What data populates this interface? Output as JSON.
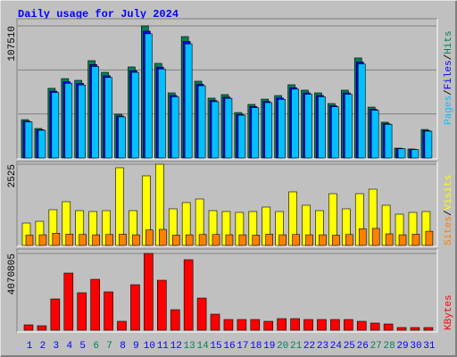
{
  "legend_separator": "/",
  "weekend_indices": [
    5,
    6,
    12,
    13,
    19,
    20,
    26,
    27
  ],
  "weekday_color": "#0000ff",
  "weekend_color": "#00805c",
  "chart_data": [
    {
      "type": "bar",
      "title": "Daily usage for July 2024",
      "ylim": [
        0,
        107510
      ],
      "yticks": [
        107510
      ],
      "series": [
        {
          "name": "Hits",
          "color": "#00805c",
          "values": [
            31200,
            24000,
            56700,
            64600,
            63200,
            79200,
            69700,
            35600,
            74100,
            107510,
            77000,
            53000,
            98800,
            62500,
            48700,
            51600,
            37000,
            43600,
            47900,
            50800,
            59600,
            55200,
            53000,
            44300,
            55200,
            81400,
            41400,
            29100,
            8000,
            7300,
            23200
          ]
        },
        {
          "name": "Files",
          "color": "#0000ff",
          "values": [
            29950,
            23040,
            54430,
            62020,
            60670,
            76030,
            66910,
            34180,
            71140,
            103210,
            73920,
            50880,
            94850,
            60000,
            46750,
            49540,
            35520,
            41860,
            45980,
            48770,
            57220,
            52990,
            50880,
            42530,
            52990,
            78140,
            39740,
            27940,
            7680,
            7010,
            22270
          ]
        },
        {
          "name": "Pages",
          "color": "#00c0ff",
          "values": [
            29330,
            22560,
            53300,
            60720,
            59410,
            74450,
            65520,
            33460,
            69650,
            101060,
            72380,
            49820,
            92870,
            58750,
            45780,
            48500,
            34780,
            40980,
            45030,
            47750,
            56020,
            51890,
            49820,
            41640,
            51890,
            76520,
            38920,
            27350,
            7520,
            6860,
            21810
          ]
        }
      ]
    },
    {
      "type": "bar",
      "ylim": [
        0,
        2525
      ],
      "yticks": [
        2525
      ],
      "series": [
        {
          "name": "Visits",
          "color": "#ffff00",
          "values": [
            694,
            749,
            1110,
            1360,
            1082,
            1054,
            1082,
            2414,
            1082,
            2164,
            2525,
            1138,
            1332,
            1443,
            1082,
            1054,
            1027,
            1054,
            1193,
            1054,
            1665,
            1249,
            1082,
            1609,
            1138,
            1609,
            1748,
            1249,
            971,
            1027,
            1054
          ]
        },
        {
          "name": "Sites",
          "color": "#ff8000",
          "values": [
            320,
            330,
            380,
            350,
            340,
            330,
            340,
            350,
            330,
            480,
            500,
            320,
            330,
            340,
            340,
            330,
            330,
            320,
            350,
            330,
            340,
            330,
            330,
            320,
            340,
            520,
            530,
            360,
            330,
            350,
            440
          ]
        }
      ]
    },
    {
      "type": "bar",
      "ylim": [
        0,
        4070805
      ],
      "yticks": [
        4070805
      ],
      "categories": [
        "1",
        "2",
        "3",
        "4",
        "5",
        "6",
        "7",
        "8",
        "9",
        "10",
        "11",
        "12",
        "13",
        "14",
        "15",
        "16",
        "17",
        "18",
        "19",
        "20",
        "21",
        "22",
        "23",
        "24",
        "25",
        "26",
        "27",
        "28",
        "29",
        "30",
        "31"
      ],
      "series": [
        {
          "name": "KBytes",
          "color": "#ff0000",
          "values": [
            284000,
            237000,
            1657000,
            3030000,
            1988000,
            2698000,
            2035000,
            473000,
            2414000,
            4070805,
            2650000,
            1089000,
            3740000,
            1704000,
            852000,
            568000,
            568000,
            568000,
            473000,
            615000,
            615000,
            568000,
            568000,
            568000,
            568000,
            473000,
            379000,
            331000,
            142000,
            142000,
            142000
          ]
        }
      ]
    }
  ]
}
